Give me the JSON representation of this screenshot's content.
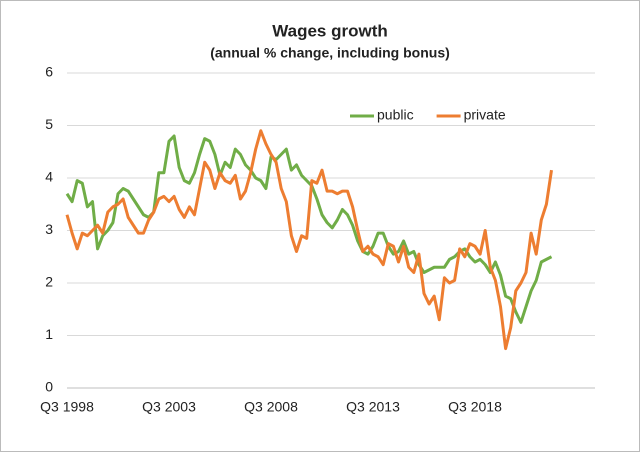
{
  "chart_data": {
    "type": "line",
    "title": "Wages growth",
    "subtitle": "(annual % change, including bonus)",
    "categories": [
      "Q3 1998",
      null,
      null,
      null,
      null,
      null,
      null,
      null,
      null,
      null,
      null,
      null,
      null,
      null,
      null,
      null,
      null,
      null,
      null,
      null,
      "Q3 2003",
      null,
      null,
      null,
      null,
      null,
      null,
      null,
      null,
      null,
      null,
      null,
      null,
      null,
      null,
      null,
      null,
      null,
      null,
      null,
      "Q3 2008",
      null,
      null,
      null,
      null,
      null,
      null,
      null,
      null,
      null,
      null,
      null,
      null,
      null,
      null,
      null,
      null,
      null,
      null,
      null,
      "Q3 2013",
      null,
      null,
      null,
      null,
      null,
      null,
      null,
      null,
      null,
      null,
      null,
      null,
      null,
      null,
      null,
      null,
      null,
      null,
      null,
      "Q3 2018",
      null,
      null,
      null,
      null,
      null,
      null,
      null,
      null,
      null,
      null,
      null,
      null,
      null,
      null,
      null
    ],
    "series": [
      {
        "name": "public",
        "color": "#70ad47",
        "values": [
          3.7,
          3.55,
          3.95,
          3.9,
          3.45,
          3.55,
          2.65,
          2.9,
          3.0,
          3.15,
          3.7,
          3.8,
          3.75,
          3.6,
          3.45,
          3.3,
          3.25,
          3.35,
          4.1,
          4.1,
          4.7,
          4.8,
          4.2,
          3.95,
          3.9,
          4.1,
          4.45,
          4.75,
          4.7,
          4.45,
          4.05,
          4.3,
          4.2,
          4.55,
          4.45,
          4.25,
          4.15,
          4.0,
          3.95,
          3.8,
          4.4,
          4.35,
          4.45,
          4.55,
          4.15,
          4.25,
          4.05,
          3.95,
          3.85,
          3.6,
          3.3,
          3.15,
          3.05,
          3.2,
          3.4,
          3.3,
          3.1,
          2.8,
          2.6,
          2.55,
          2.7,
          2.95,
          2.95,
          2.7,
          2.55,
          2.6,
          2.8,
          2.55,
          2.6,
          2.35,
          2.2,
          2.25,
          2.3,
          2.3,
          2.3,
          2.45,
          2.5,
          2.6,
          2.65,
          2.5,
          2.4,
          2.45,
          2.35,
          2.2,
          2.4,
          2.15,
          1.75,
          1.7,
          1.45,
          1.25,
          1.55,
          1.85,
          2.05,
          2.4,
          2.45,
          2.5
        ]
      },
      {
        "name": "private",
        "color": "#ed7d31",
        "values": [
          3.3,
          2.95,
          2.65,
          2.95,
          2.9,
          3.0,
          3.1,
          2.95,
          3.35,
          3.45,
          3.5,
          3.6,
          3.25,
          3.1,
          2.95,
          2.95,
          3.2,
          3.35,
          3.6,
          3.65,
          3.55,
          3.65,
          3.4,
          3.25,
          3.45,
          3.3,
          3.8,
          4.3,
          4.15,
          3.8,
          4.1,
          3.95,
          3.9,
          4.05,
          3.6,
          3.75,
          4.1,
          4.55,
          4.9,
          4.65,
          4.45,
          4.3,
          3.8,
          3.55,
          2.9,
          2.6,
          2.9,
          2.85,
          3.95,
          3.9,
          4.15,
          3.75,
          3.75,
          3.7,
          3.75,
          3.75,
          3.45,
          3.0,
          2.6,
          2.7,
          2.55,
          2.5,
          2.35,
          2.75,
          2.7,
          2.4,
          2.7,
          2.3,
          2.2,
          2.55,
          1.8,
          1.6,
          1.75,
          1.3,
          2.1,
          2.0,
          2.05,
          2.65,
          2.5,
          2.75,
          2.7,
          2.55,
          3.0,
          2.3,
          2.05,
          1.55,
          0.75,
          1.15,
          1.85,
          2.0,
          2.2,
          2.95,
          2.55,
          3.2,
          3.5,
          4.15
        ]
      }
    ],
    "ylim": [
      0,
      6
    ],
    "yticks": [
      0,
      1,
      2,
      3,
      4,
      5,
      6
    ],
    "grid": true,
    "legend": "top"
  }
}
